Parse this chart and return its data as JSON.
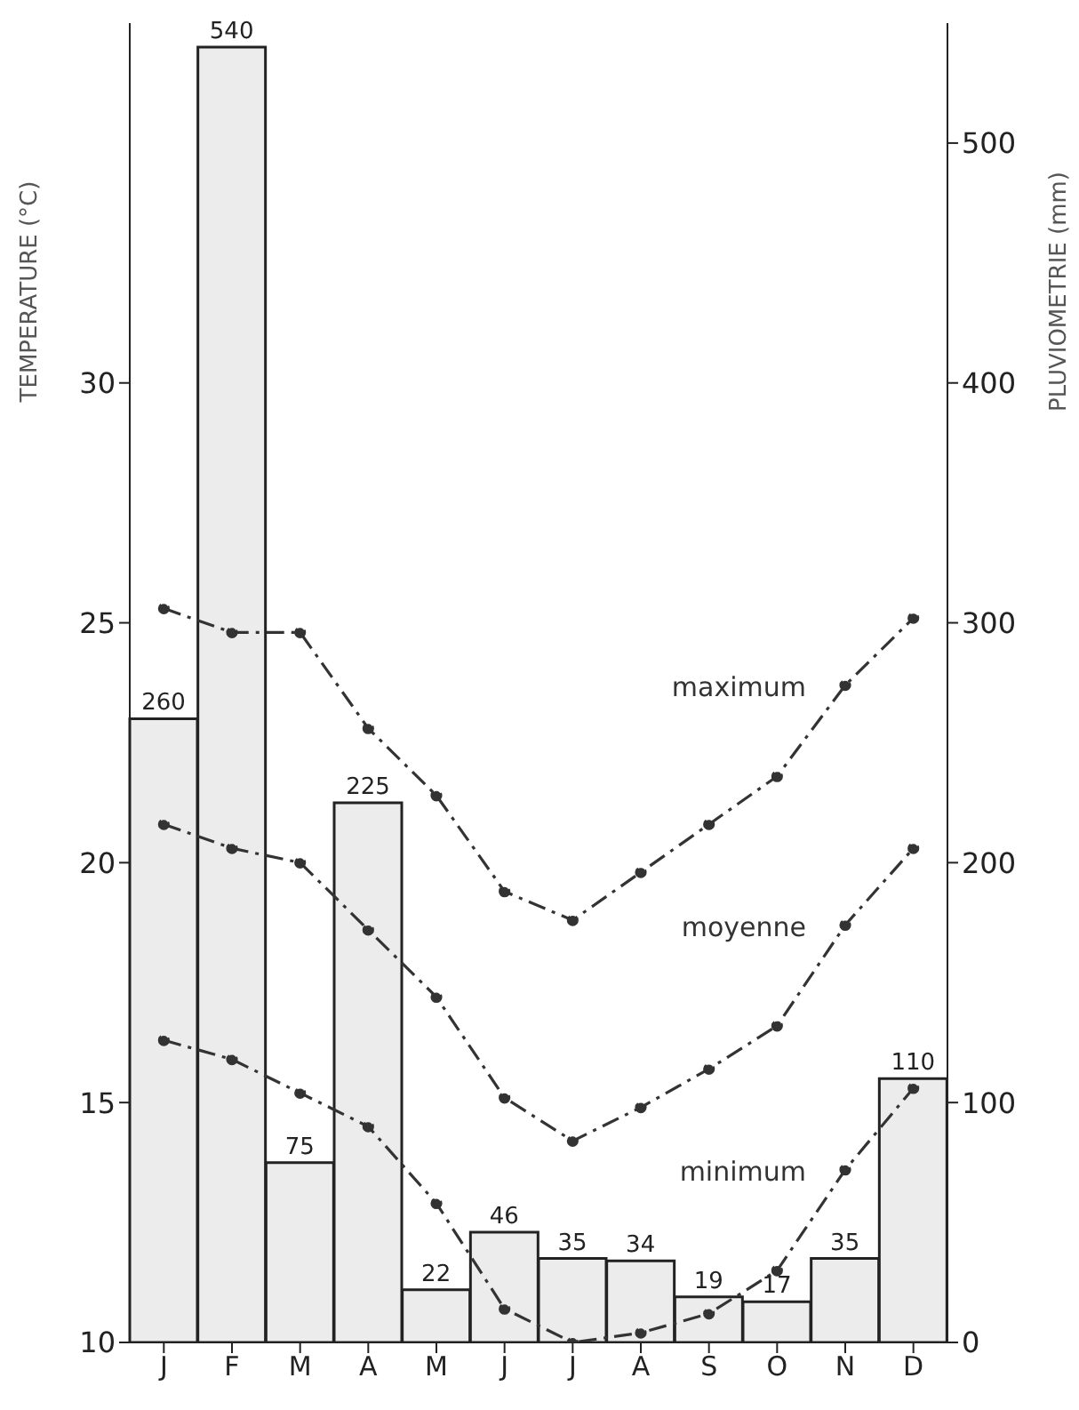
{
  "chart_data": {
    "type": "bar",
    "ylabel": "TEMPERATURE (°C)",
    "y2label": "PLUVIOMETRIE (mm)",
    "categories": [
      "J",
      "F",
      "M",
      "A",
      "M",
      "J",
      "J",
      "A",
      "S",
      "O",
      "N",
      "D"
    ],
    "series": [
      {
        "axis": "y2",
        "color": "#ececec",
        "values": [
          260,
          540,
          75,
          225,
          22,
          46,
          35,
          34,
          19,
          17,
          35,
          110
        ],
        "data_labels": true
      },
      {
        "type": "line",
        "name": "maximum",
        "color": "#333333",
        "values": [
          25.3,
          24.8,
          24.8,
          22.8,
          21.4,
          19.4,
          18.8,
          19.8,
          20.8,
          21.8,
          23.7,
          25.1
        ]
      },
      {
        "type": "line",
        "name": "moyenne",
        "color": "#333333",
        "values": [
          20.8,
          20.3,
          20.0,
          18.6,
          17.2,
          15.1,
          14.2,
          14.9,
          15.7,
          16.6,
          18.7,
          20.3
        ]
      },
      {
        "type": "line",
        "name": "minimum",
        "color": "#333333",
        "values": [
          16.3,
          15.9,
          15.2,
          14.5,
          12.9,
          10.7,
          10.0,
          10.2,
          10.6,
          11.5,
          13.6,
          15.3
        ]
      }
    ],
    "ylim": [
      10,
      37.5
    ],
    "yticks": [
      10,
      15,
      20,
      25,
      30
    ],
    "y2lim": [
      0,
      550
    ],
    "y2ticks": [
      0,
      100,
      200,
      300,
      400,
      500
    ],
    "grid": false,
    "legend": false,
    "marker": "circle",
    "line_style": "dashed"
  }
}
